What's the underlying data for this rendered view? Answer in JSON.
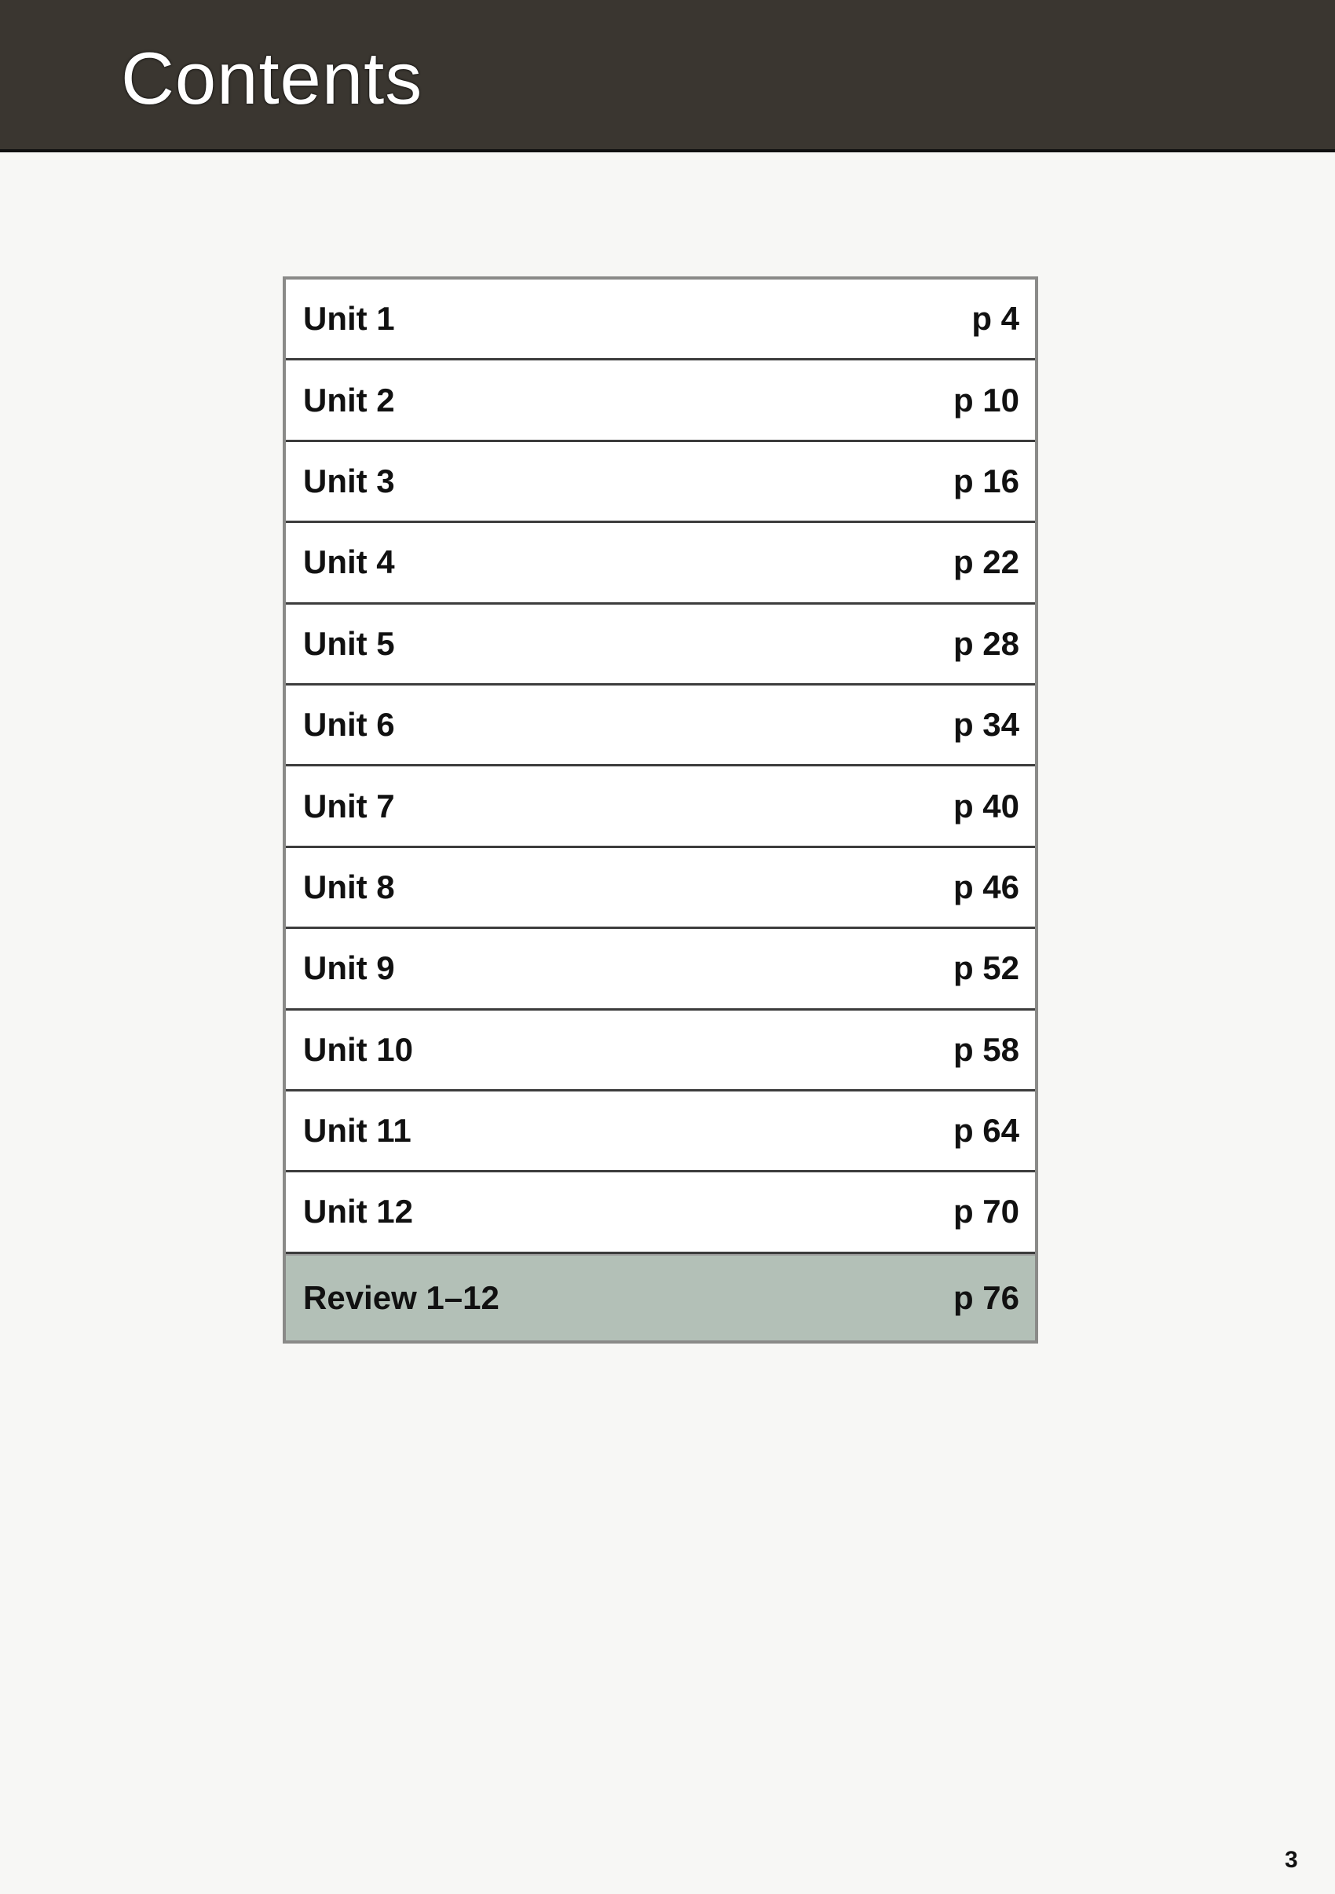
{
  "header": {
    "title": "Contents"
  },
  "toc": {
    "items": [
      {
        "label": "Unit 1",
        "page": "p 4"
      },
      {
        "label": "Unit 2",
        "page": "p 10"
      },
      {
        "label": "Unit 3",
        "page": "p 16"
      },
      {
        "label": "Unit 4",
        "page": "p 22"
      },
      {
        "label": "Unit 5",
        "page": "p 28"
      },
      {
        "label": "Unit 6",
        "page": "p 34"
      },
      {
        "label": "Unit 7",
        "page": "p 40"
      },
      {
        "label": "Unit 8",
        "page": "p 46"
      },
      {
        "label": "Unit 9",
        "page": "p 52"
      },
      {
        "label": "Unit 10",
        "page": "p 58"
      },
      {
        "label": "Unit 11",
        "page": "p 64"
      },
      {
        "label": "Unit 12",
        "page": "p 70"
      }
    ],
    "review": {
      "label": "Review 1–12",
      "page": "p 76"
    },
    "review_color": "#b3c0b7"
  },
  "page_number": "3"
}
